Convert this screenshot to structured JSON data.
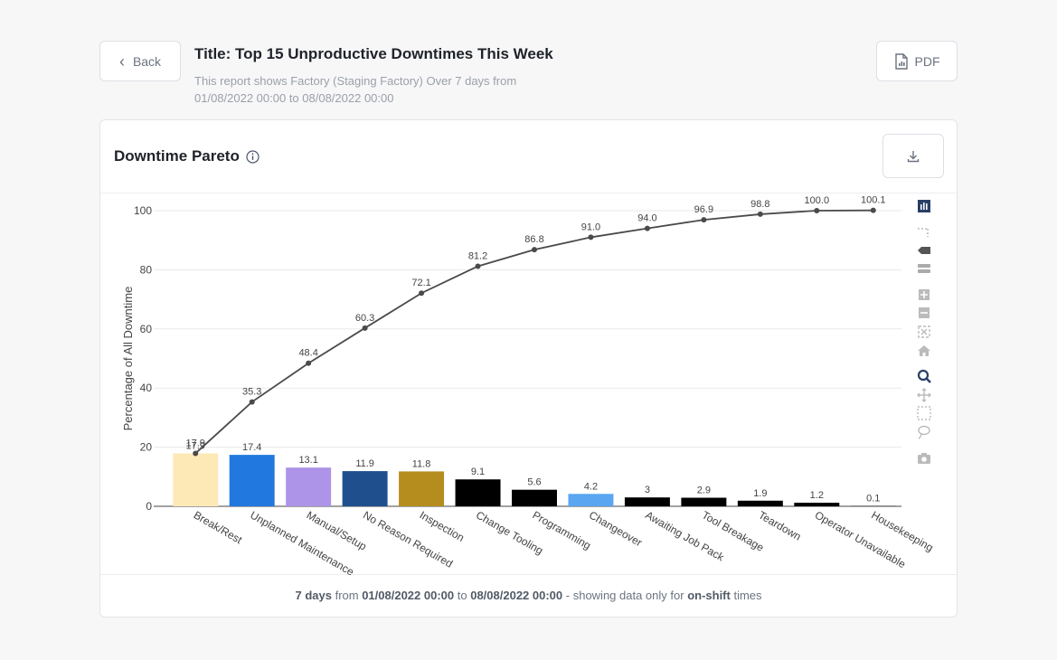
{
  "header": {
    "back_label": "Back",
    "title": "Title: Top 15 Unproductive Downtimes This Week",
    "subtitle": "This report shows Factory (Staging Factory) Over 7 days from 01/08/2022 00:00 to 08/08/2022 00:00",
    "pdf_label": "PDF"
  },
  "card": {
    "title": "Downtime Pareto"
  },
  "footer": {
    "days": "7 days",
    "from_word": " from ",
    "start": "01/08/2022 00:00",
    "to_word": " to ",
    "end": "08/08/2022 00:00",
    "showing": " - showing data only for ",
    "onshift": "on-shift",
    "times": " times"
  },
  "toolbar": {
    "icons": [
      "bar-chart-icon",
      "dotted-lines-icon",
      "tag-icon",
      "stack-icon",
      "zoom-in-plus-icon",
      "zoom-out-minus-icon",
      "autoscale-icon",
      "home-icon",
      "zoom-magnifier-icon",
      "pan-icon",
      "box-select-icon",
      "lasso-icon",
      "camera-icon"
    ]
  },
  "chart_data": {
    "type": "bar",
    "title": "Downtime Pareto",
    "xlabel": "",
    "ylabel": "Percentage of All Downtime",
    "ylim": [
      0,
      100
    ],
    "yticks": [
      0,
      20,
      40,
      60,
      80,
      100
    ],
    "grid": true,
    "categories": [
      "Break/Rest",
      "Unplanned Maintenance",
      "Manual/Setup",
      "No Reason Required",
      "Inspection",
      "Change Tooling",
      "Programming",
      "Changeover",
      "Awaiting Job Pack",
      "Tool Breakage",
      "Teardown",
      "Operator Unavailable",
      "Housekeeping"
    ],
    "values": [
      17.9,
      17.4,
      13.1,
      11.9,
      11.8,
      9.1,
      5.6,
      4.2,
      3,
      2.9,
      1.9,
      1.2,
      0.1
    ],
    "bar_labels": [
      "17.9",
      "17.4",
      "13.1",
      "11.9",
      "11.8",
      "9.1",
      "5.6",
      "4.2",
      "3",
      "2.9",
      "1.9",
      "1.2",
      "0.1"
    ],
    "bar_colors": [
      "#fde9b6",
      "#2178de",
      "#ad94e8",
      "#1f508d",
      "#b58d1e",
      "#000000",
      "#000000",
      "#5aa6f0",
      "#000000",
      "#000000",
      "#000000",
      "#000000",
      "#000000"
    ],
    "cumulative": [
      17.9,
      35.3,
      48.4,
      60.3,
      72.1,
      81.2,
      86.8,
      91.0,
      94.0,
      96.9,
      98.8,
      100.0,
      100.1
    ],
    "cumulative_labels": [
      "17.9",
      "35.3",
      "48.4",
      "60.3",
      "72.1",
      "81.2",
      "86.8",
      "91.0",
      "94.0",
      "96.9",
      "98.8",
      "100.0",
      "100.1"
    ],
    "line_color": "#4a4a4a"
  }
}
